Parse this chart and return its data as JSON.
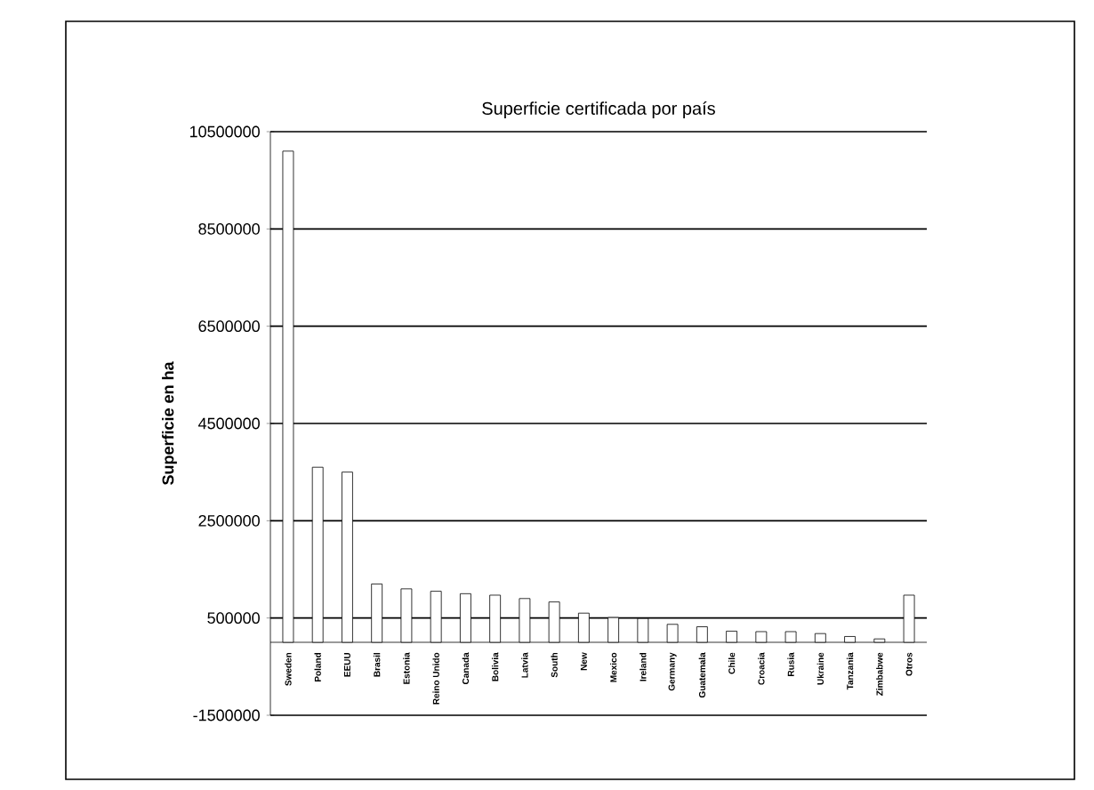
{
  "chart_data": {
    "type": "bar",
    "title": "Superficie certificada por país",
    "ylabel": "Superficie en ha",
    "categories": [
      "Sweden",
      "Poland",
      "EEUU",
      "Brasil",
      "Estonia",
      "Reino Unido",
      "Canada",
      "Bolivia",
      "Latvia",
      "South",
      "New",
      "Mexico",
      "Ireland",
      "Germany",
      "Guatemala",
      "Chile",
      "Croacia",
      "Rusia",
      "Ukraine",
      "Tanzania",
      "Zimbabwe",
      "Otros"
    ],
    "values": [
      10100000,
      3600000,
      3500000,
      1200000,
      1100000,
      1050000,
      1000000,
      970000,
      900000,
      830000,
      600000,
      510000,
      490000,
      370000,
      320000,
      230000,
      220000,
      220000,
      180000,
      120000,
      70000,
      970000
    ],
    "color": "#ffffff",
    "ylim": [
      -1500000,
      10500000
    ],
    "yticks": [
      -1500000,
      500000,
      2500000,
      4500000,
      6500000,
      8500000,
      10500000
    ],
    "grid": "y"
  }
}
